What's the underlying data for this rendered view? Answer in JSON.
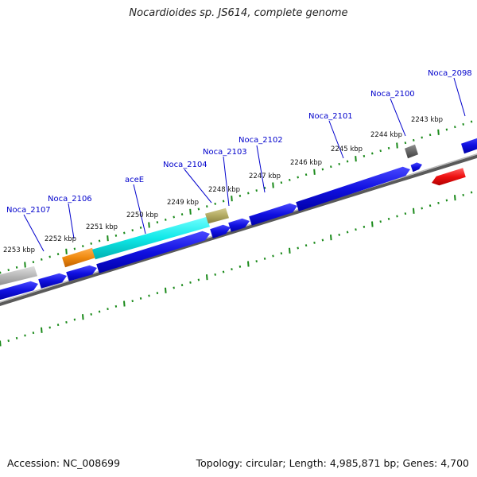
{
  "title": "Nocardioides sp. JS614, complete genome",
  "footer": {
    "accession": "Accession: NC_008699",
    "summary": "Topology: circular; Length: 4,985,871 bp; Genes: 4,700"
  },
  "colors": {
    "backbone": "#888888",
    "tick": "#1a8a1a",
    "gene_label": "#0000cc",
    "cds": "#1010e0",
    "cds_cyan": "#10e8e8",
    "cds_orange": "#f08a10",
    "cds_gray": "#b8b8b8",
    "cds_olive": "#b0a860",
    "cds_dark": "#666666",
    "cds_red": "#ee1010"
  },
  "ruler_labels": [
    "2253 kbp",
    "2252 kbp",
    "2251 kbp",
    "2250 kbp",
    "2249 kbp",
    "2248 kbp",
    "2247 kbp",
    "2246 kbp",
    "2245 kbp",
    "2244 kbp",
    "2243 kbp"
  ],
  "gene_labels": [
    "Noca_2107",
    "Noca_2106",
    "aceE",
    "Noca_2104",
    "Noca_2103",
    "Noca_2102",
    "Noca_2101",
    "Noca_2100",
    "Noca_2098"
  ]
}
